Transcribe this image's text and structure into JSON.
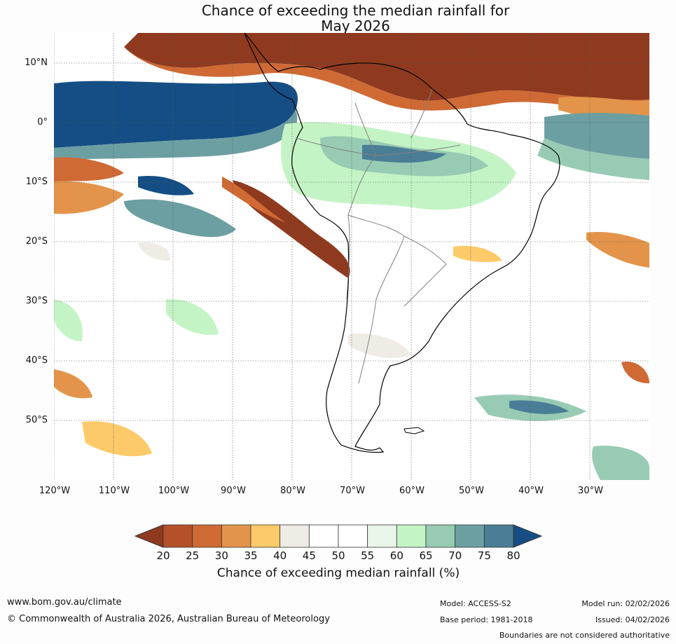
{
  "title": {
    "line1": "Chance of exceeding the median rainfall for",
    "line2": "May 2026"
  },
  "map": {
    "region": "South America",
    "lat_labels": [
      "10°N",
      "0°",
      "10°S",
      "20°S",
      "30°S",
      "40°S",
      "50°S"
    ],
    "lon_labels": [
      "120°W",
      "110°W",
      "100°W",
      "90°W",
      "80°W",
      "70°W",
      "60°W",
      "50°W",
      "40°W",
      "30°W"
    ]
  },
  "colorbar": {
    "ticks": [
      "20",
      "25",
      "30",
      "35",
      "40",
      "45",
      "50",
      "55",
      "60",
      "65",
      "70",
      "75",
      "80"
    ],
    "colors": [
      "#8f3a1f",
      "#b4512a",
      "#cf6a35",
      "#e3944a",
      "#fdca6a",
      "#efece6",
      "#ffffff",
      "#ffffff",
      "#e8f5e8",
      "#c4f4c6",
      "#98cbb3",
      "#6c9fa2",
      "#4a7e96",
      "#154e84"
    ],
    "label": "Chance of exceeding median rainfall (%)"
  },
  "footer": {
    "website": "www.bom.gov.au/climate",
    "copyright": "© Commonwealth of Australia 2026, Australian Bureau of Meteorology",
    "model": "Model: ACCESS-S2",
    "base_period": "Base period: 1981-2018",
    "model_run": "Model run: 02/02/2026",
    "issued": "Issued: 04/02/2026",
    "disclaimer": "Boundaries are not considered authoritative"
  }
}
